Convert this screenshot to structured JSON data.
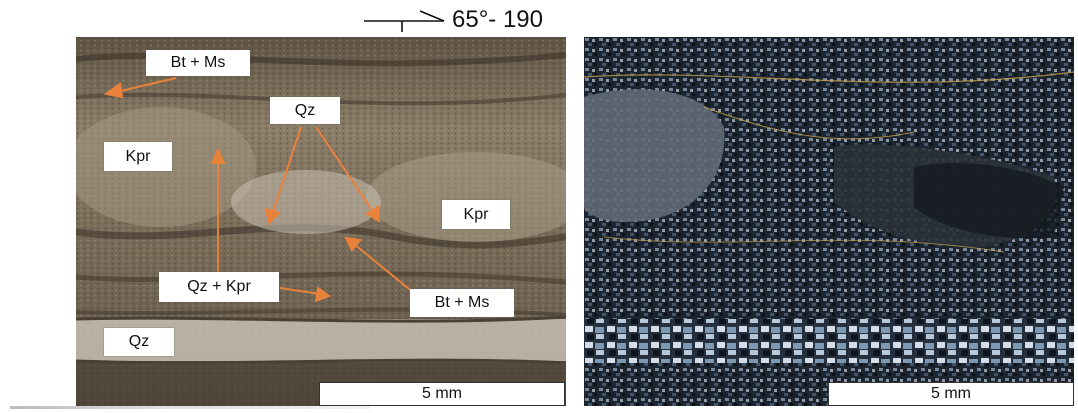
{
  "orientation": {
    "text": "65°- 190"
  },
  "left_panel": {
    "labels": {
      "bt_ms_top": "Bt + Ms",
      "qz_top": "Qz",
      "kpr_left": "Kpr",
      "kpr_right": "Kpr",
      "qz_kpr": "Qz + Kpr",
      "bt_ms_bottom": "Bt + Ms",
      "qz_bottom": "Qz"
    },
    "scale_bar": "5 mm",
    "arrow_color": "#e8813a"
  },
  "right_panel": {
    "scale_bar": "5 mm"
  }
}
